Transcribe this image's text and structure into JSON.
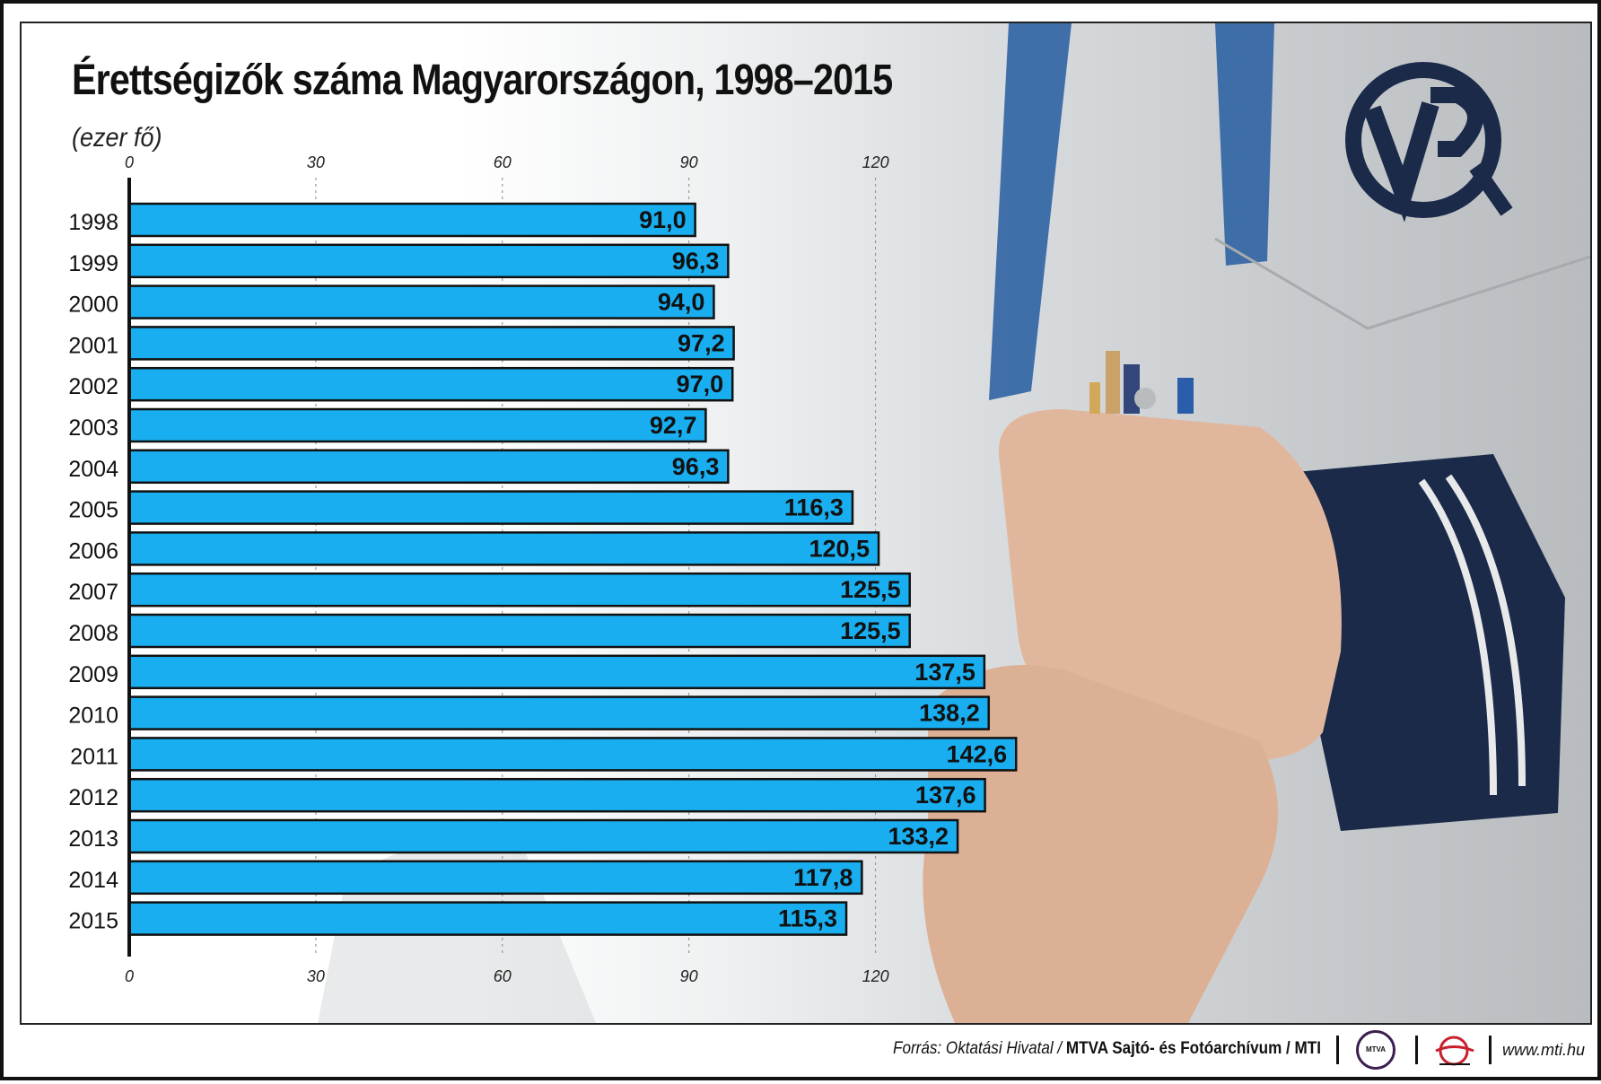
{
  "title": "Érettségizők száma Magyarországon, 1998–2015",
  "subtitle": "(ezer fő)",
  "colors": {
    "bar": "#19aef0",
    "bar_outline": "#111111",
    "gridline": "#8a8a8a",
    "text": "#111111",
    "uniform_dark": "#1b2a48",
    "uniform_stripe": "#2f63a3"
  },
  "chart_data": {
    "type": "bar",
    "orientation": "horizontal",
    "title": "Érettségizők száma Magyarországon, 1998–2015",
    "subtitle": "(ezer fő)",
    "categories": [
      "1998",
      "1999",
      "2000",
      "2001",
      "2002",
      "2003",
      "2004",
      "2005",
      "2006",
      "2007",
      "2008",
      "2009",
      "2010",
      "2011",
      "2012",
      "2013",
      "2014",
      "2015"
    ],
    "values": [
      91.0,
      96.3,
      94.0,
      97.2,
      97.0,
      92.7,
      96.3,
      116.3,
      120.5,
      125.5,
      125.5,
      137.5,
      138.2,
      142.6,
      137.6,
      133.2,
      117.8,
      115.3
    ],
    "value_labels": [
      "91,0",
      "96,3",
      "94,0",
      "97,2",
      "97,0",
      "92,7",
      "96,3",
      "116,3",
      "120,5",
      "125,5",
      "125,5",
      "137,5",
      "138,2",
      "142,6",
      "137,6",
      "133,2",
      "117,8",
      "115,3"
    ],
    "xticks": [
      0,
      30,
      60,
      90,
      120
    ],
    "xtick_labels": [
      "0",
      "30",
      "60",
      "90",
      "120"
    ],
    "grid": true,
    "tick_labels_top_and_bottom": true
  },
  "footer": {
    "source_prefix": "Forrás: Oktatási Hivatal /",
    "source_main": "MTVA Sajtó- és Fotóarchívum / MTI",
    "mtva_logo": "MTVA",
    "website": "www.mti.hu",
    "mti_logo_icon": "mti-logo-icon"
  }
}
